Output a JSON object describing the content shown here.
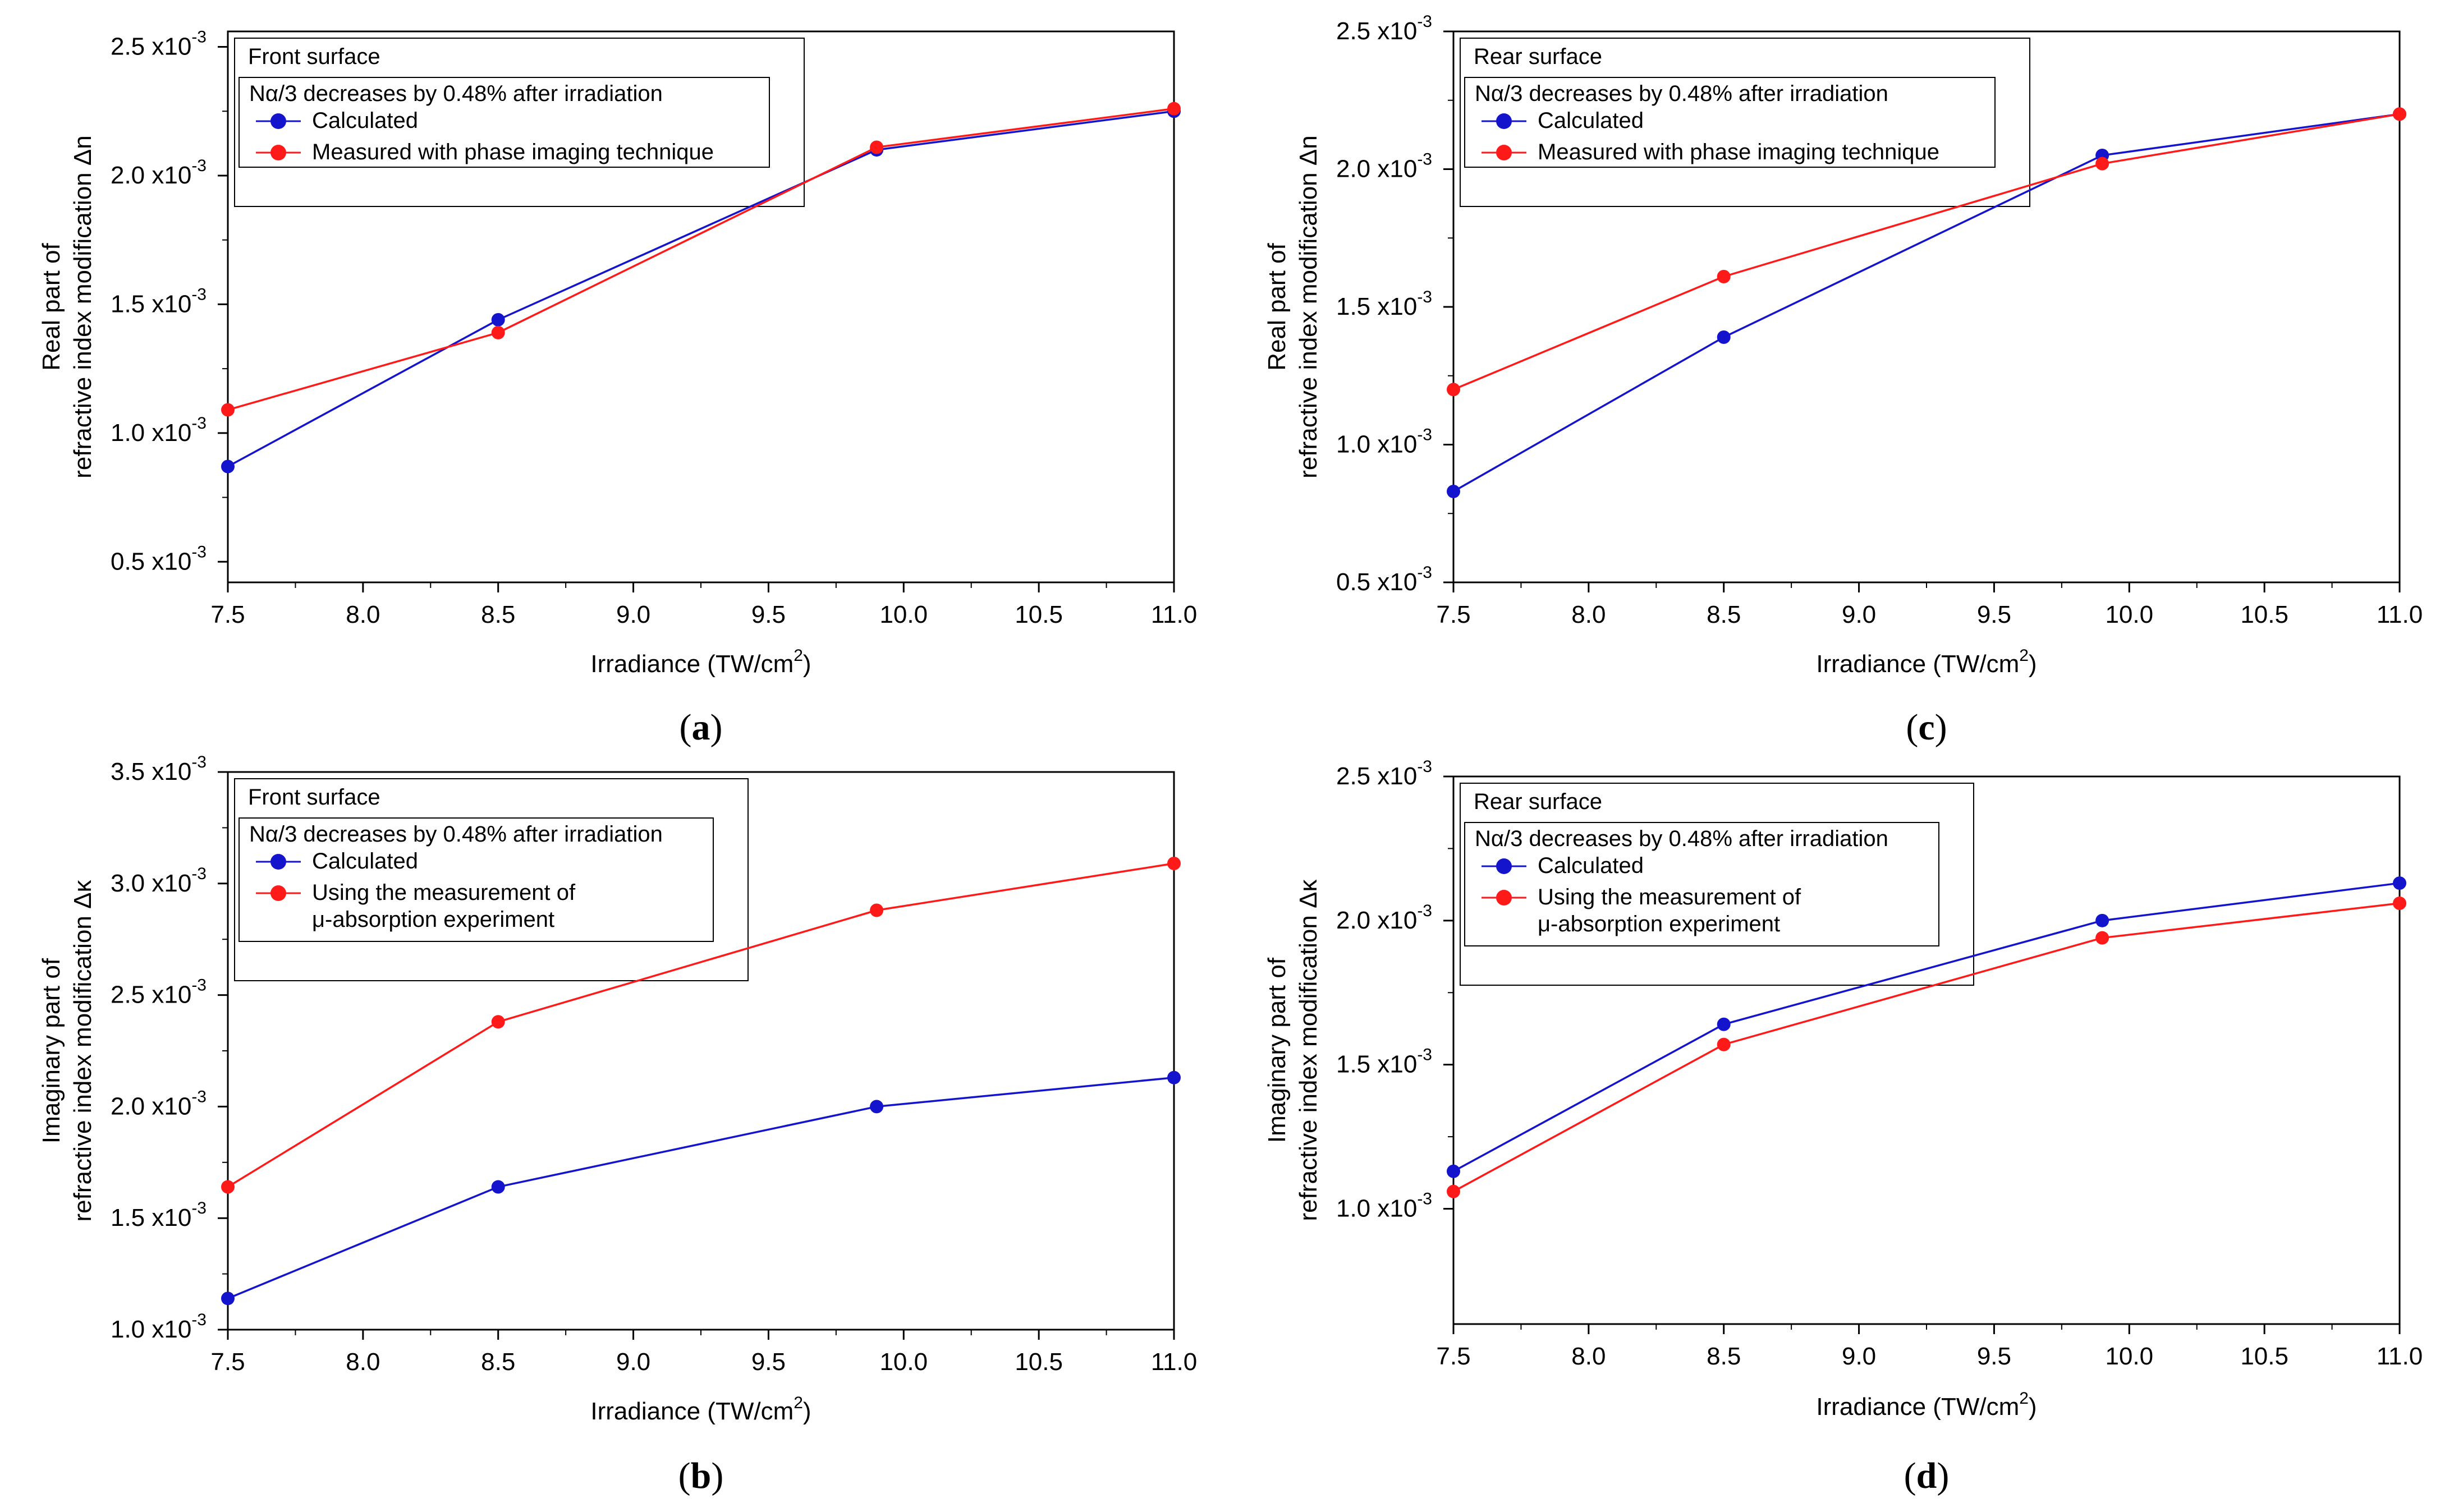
{
  "figure": {
    "x_tick_labels": [
      "7.5",
      "8.0",
      "8.5",
      "9.0",
      "9.5",
      "10.0",
      "10.5",
      "11.0"
    ],
    "colors": {
      "calculated": "#1414cc",
      "measured": "#ff1a1a",
      "axis": "#000000"
    }
  },
  "chart_data": [
    {
      "id": "a",
      "type": "line",
      "panel_label": "(a)",
      "panel_letter": "a",
      "surface_label": "Front surface",
      "legend_title": "Nα/3 decreases by 0.48% after irradiation",
      "legend_placement": "top-left",
      "xlabel": "Irradiance (TW/cm",
      "xlabel_sup": "2",
      "xlabel_tail": ")",
      "ylabel_line1": "Real part of",
      "ylabel_line2": "refractive index modification Δn",
      "xlim": [
        7.5,
        11.0
      ],
      "ylim": [
        0.00042,
        0.00256
      ],
      "x": [
        7.5,
        8.5,
        9.9,
        11.0
      ],
      "y_ticks": [
        {
          "value": 0.0005,
          "label": "0.5 x10",
          "exp": "-3"
        },
        {
          "value": 0.001,
          "label": "1.0 x10",
          "exp": "-3"
        },
        {
          "value": 0.0015,
          "label": "1.5 x10",
          "exp": "-3"
        },
        {
          "value": 0.002,
          "label": "2.0 x10",
          "exp": "-3"
        },
        {
          "value": 0.0025,
          "label": "2.5 x10",
          "exp": "-3"
        }
      ],
      "series": [
        {
          "key": "calculated",
          "name": "Calculated",
          "name2": "",
          "values": [
            0.00087,
            0.00144,
            0.0021,
            0.00225
          ]
        },
        {
          "key": "measured",
          "name": "Measured with phase imaging technique",
          "name2": "",
          "values": [
            0.00109,
            0.00139,
            0.00211,
            0.00226
          ]
        }
      ]
    },
    {
      "id": "c",
      "type": "line",
      "panel_label": "(c)",
      "panel_letter": "c",
      "surface_label": "Rear surface",
      "legend_title": "Nα/3 decreases by 0.48% after irradiation",
      "legend_placement": "top-left",
      "xlabel": "Irradiance (TW/cm",
      "xlabel_sup": "2",
      "xlabel_tail": ")",
      "ylabel_line1": "Real part of",
      "ylabel_line2": "refractive index modification Δn",
      "xlim": [
        7.5,
        11.0
      ],
      "ylim": [
        0.0005,
        0.0025
      ],
      "x": [
        7.5,
        8.5,
        9.9,
        11.0
      ],
      "y_ticks": [
        {
          "value": 0.0005,
          "label": "0.5 x10",
          "exp": "-3"
        },
        {
          "value": 0.001,
          "label": "1.0 x10",
          "exp": "-3"
        },
        {
          "value": 0.0015,
          "label": "1.5 x10",
          "exp": "-3"
        },
        {
          "value": 0.002,
          "label": "2.0 x10",
          "exp": "-3"
        },
        {
          "value": 0.0025,
          "label": "2.5 x10",
          "exp": "-3"
        }
      ],
      "series": [
        {
          "key": "calculated",
          "name": "Calculated",
          "name2": "",
          "values": [
            0.00083,
            0.00139,
            0.00205,
            0.0022
          ]
        },
        {
          "key": "measured",
          "name": "Measured with phase imaging technique",
          "name2": "",
          "values": [
            0.0012,
            0.00161,
            0.00202,
            0.0022
          ]
        }
      ]
    },
    {
      "id": "b",
      "type": "line",
      "panel_label": "(b)",
      "panel_letter": "b",
      "surface_label": "Front surface",
      "legend_title": "Nα/3 decreases by 0.48% after irradiation",
      "legend_placement": "top-left",
      "xlabel": "Irradiance (TW/cm",
      "xlabel_sup": "2",
      "xlabel_tail": ")",
      "ylabel_line1": "Imaginary part of",
      "ylabel_line2": "refractive index modification Δκ",
      "xlim": [
        7.5,
        11.0
      ],
      "ylim": [
        0.001,
        0.0035
      ],
      "x": [
        7.5,
        8.5,
        9.9,
        11.0
      ],
      "y_ticks": [
        {
          "value": 0.001,
          "label": "1.0 x10",
          "exp": "-3"
        },
        {
          "value": 0.0015,
          "label": "1.5 x10",
          "exp": "-3"
        },
        {
          "value": 0.002,
          "label": "2.0 x10",
          "exp": "-3"
        },
        {
          "value": 0.0025,
          "label": "2.5 x10",
          "exp": "-3"
        },
        {
          "value": 0.003,
          "label": "3.0 x10",
          "exp": "-3"
        },
        {
          "value": 0.0035,
          "label": "3.5 x10",
          "exp": "-3"
        }
      ],
      "series": [
        {
          "key": "calculated",
          "name": "Calculated",
          "name2": "",
          "values": [
            0.00114,
            0.00164,
            0.002,
            0.00213
          ]
        },
        {
          "key": "measured",
          "name": "Using the measurement of",
          "name2": "μ-absorption experiment",
          "values": [
            0.00164,
            0.00238,
            0.00288,
            0.00309
          ]
        }
      ]
    },
    {
      "id": "d",
      "type": "line",
      "panel_label": "(d)",
      "panel_letter": "d",
      "surface_label": "Rear surface",
      "legend_title": "Nα/3 decreases by 0.48% after irradiation",
      "legend_placement": "top-left",
      "xlabel": "Irradiance (TW/cm",
      "xlabel_sup": "2",
      "xlabel_tail": ")",
      "ylabel_line1": "Imaginary part of",
      "ylabel_line2": "refractive index modification Δκ",
      "xlim": [
        7.5,
        11.0
      ],
      "ylim": [
        0.0006,
        0.0025
      ],
      "x": [
        7.5,
        8.5,
        9.9,
        11.0
      ],
      "y_ticks": [
        {
          "value": 0.001,
          "label": "1.0 x10",
          "exp": "-3"
        },
        {
          "value": 0.0015,
          "label": "1.5 x10",
          "exp": "-3"
        },
        {
          "value": 0.002,
          "label": "2.0 x10",
          "exp": "-3"
        },
        {
          "value": 0.0025,
          "label": "2.5 x10",
          "exp": "-3"
        }
      ],
      "series": [
        {
          "key": "calculated",
          "name": "Calculated",
          "name2": "",
          "values": [
            0.00113,
            0.00164,
            0.002,
            0.00213
          ]
        },
        {
          "key": "measured",
          "name": "Using the measurement of",
          "name2": "μ-absorption experiment",
          "values": [
            0.00106,
            0.00157,
            0.00194,
            0.00206
          ]
        }
      ]
    }
  ]
}
